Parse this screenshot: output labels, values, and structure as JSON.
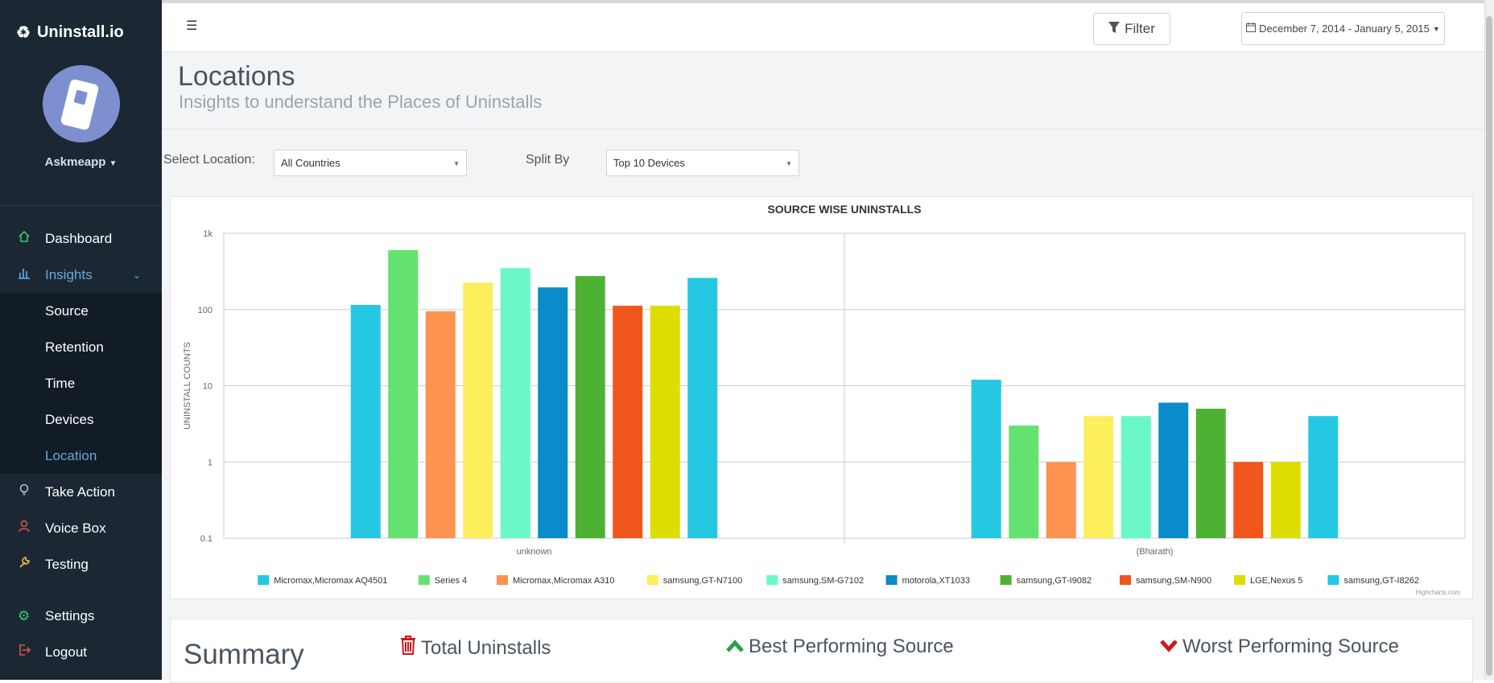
{
  "app": {
    "brand": "Uninstall.io",
    "brand_icon": "recycle-icon",
    "user": "Askmeapp"
  },
  "sidebar": {
    "main": [
      {
        "label": "Dashboard",
        "icon": "home-icon"
      },
      {
        "label": "Insights",
        "icon": "bar-chart-icon"
      }
    ],
    "insights_sub": [
      "Source",
      "Retention",
      "Time",
      "Devices",
      "Location"
    ],
    "actions": [
      {
        "label": "Take Action",
        "icon": "lightbulb-icon"
      },
      {
        "label": "Voice Box",
        "icon": "user-icon"
      },
      {
        "label": "Testing",
        "icon": "wrench-icon"
      }
    ],
    "bottom": [
      {
        "label": "Settings",
        "icon": "gear-icon"
      },
      {
        "label": "Logout",
        "icon": "logout-icon"
      }
    ]
  },
  "topbar": {
    "filter_label": "Filter",
    "date_range": "December 7, 2014 - January 5, 2015"
  },
  "page": {
    "title": "Locations",
    "subtitle": "Insights to understand the Places of Uninstalls"
  },
  "filters": {
    "location_label": "Select Location:",
    "location_value": "All Countries",
    "split_label": "Split By",
    "split_value": "Top 10 Devices"
  },
  "chart_data": {
    "type": "bar",
    "title": "SOURCE WISE UNINSTALLS",
    "xlabel": "",
    "ylabel": "UNINSTALL COUNTS",
    "yscale": "log",
    "ylim": [
      0.1,
      1000
    ],
    "yticks": [
      "0.1",
      "1",
      "10",
      "100",
      "1k"
    ],
    "categories": [
      "unknown",
      "(Bharath)"
    ],
    "credit": "Highcharts.com",
    "legend_position": "bottom",
    "series": [
      {
        "name": "Micromax,Micromax AQ4501",
        "color": "#25c8e3",
        "values": [
          115,
          12
        ]
      },
      {
        "name": "Series 4",
        "color": "#63e270",
        "values": [
          600,
          3
        ]
      },
      {
        "name": "Micromax,Micromax A310",
        "color": "#fd9350",
        "values": [
          95,
          1
        ]
      },
      {
        "name": "samsung,GT-N7100",
        "color": "#fdee5c",
        "values": [
          225,
          4
        ]
      },
      {
        "name": "samsung,SM-G7102",
        "color": "#6bf8c8",
        "values": [
          350,
          4
        ]
      },
      {
        "name": "motorola,XT1033",
        "color": "#0a8bca",
        "values": [
          195,
          6
        ]
      },
      {
        "name": "samsung,GT-I9082",
        "color": "#4db233",
        "values": [
          275,
          5
        ]
      },
      {
        "name": "samsung,SM-N900",
        "color": "#f0561b",
        "values": [
          112,
          1
        ]
      },
      {
        "name": "LGE,Nexus 5",
        "color": "#dedd00",
        "values": [
          112,
          1
        ]
      },
      {
        "name": "samsung,GT-I8262",
        "color": "#25c8e3",
        "values": [
          260,
          4
        ]
      }
    ]
  },
  "summary": {
    "title": "Summary",
    "total_label": "Total Uninstalls",
    "best_label": "Best Performing Source",
    "worst_label": "Worst Performing Source"
  }
}
